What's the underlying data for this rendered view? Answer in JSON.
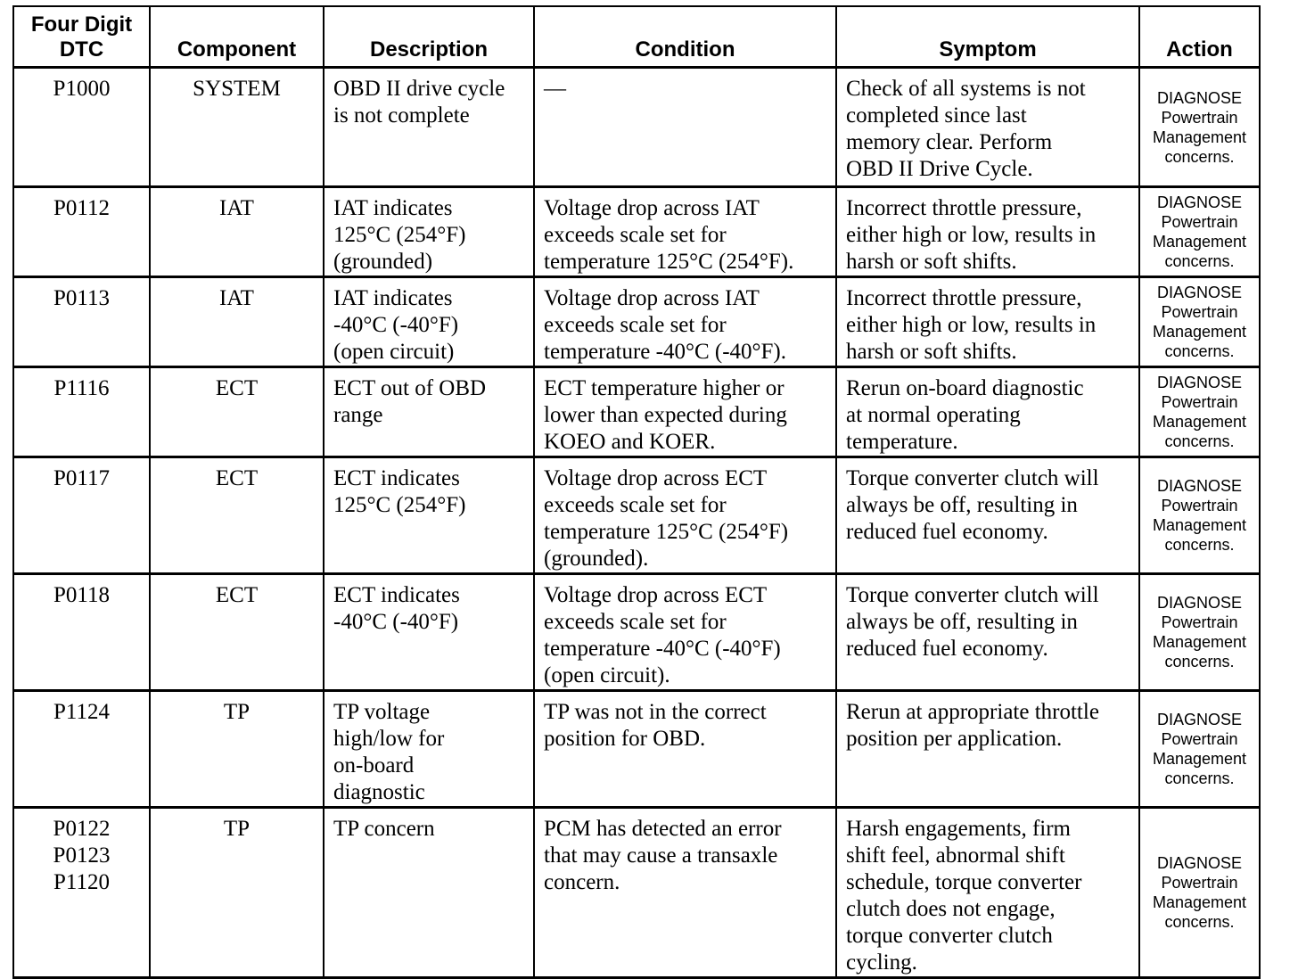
{
  "table": {
    "headers": [
      [
        "Four Digit",
        "DTC"
      ],
      [
        "Component"
      ],
      [
        "Description"
      ],
      [
        "Condition"
      ],
      [
        "Symptom"
      ],
      [
        "Action"
      ]
    ],
    "rows": [
      {
        "dtc": [
          "P1000"
        ],
        "component": [
          "SYSTEM"
        ],
        "description": [
          "OBD II drive cycle",
          "is not complete"
        ],
        "condition": [
          "—"
        ],
        "symptom": [
          "Check of all systems is not",
          "completed since last",
          "memory clear.  Perform",
          "OBD II Drive Cycle."
        ],
        "action": [
          "DIAGNOSE",
          "Powertrain",
          "Management",
          "concerns."
        ]
      },
      {
        "dtc": [
          "P0112"
        ],
        "component": [
          "IAT"
        ],
        "description": [
          "IAT indicates",
          "125°C (254°F)",
          "(grounded)"
        ],
        "condition": [
          "Voltage drop across IAT",
          "exceeds scale set for",
          "temperature 125°C (254°F)."
        ],
        "symptom": [
          "Incorrect throttle pressure,",
          "either high or low, results in",
          "harsh  or soft shifts."
        ],
        "action": [
          "DIAGNOSE",
          "Powertrain",
          "Management",
          "concerns."
        ]
      },
      {
        "dtc": [
          "P0113"
        ],
        "component": [
          "IAT"
        ],
        "description": [
          "IAT indicates",
          "-40°C (-40°F)",
          "(open circuit)"
        ],
        "condition": [
          "Voltage drop across IAT",
          "exceeds scale set for",
          "temperature -40°C (-40°F)."
        ],
        "symptom": [
          "Incorrect throttle pressure,",
          "either high or low, results in",
          "harsh  or soft shifts."
        ],
        "action": [
          "DIAGNOSE",
          "Powertrain",
          "Management",
          "concerns."
        ]
      },
      {
        "dtc": [
          "P1116"
        ],
        "component": [
          "ECT"
        ],
        "description": [
          "ECT out of OBD",
          "range"
        ],
        "condition": [
          "ECT temperature higher or",
          "lower than expected during",
          "KOEO and KOER."
        ],
        "symptom": [
          "Rerun on-board diagnostic",
          "at normal operating",
          "temperature."
        ],
        "action": [
          "DIAGNOSE",
          "Powertrain",
          "Management",
          "concerns."
        ]
      },
      {
        "dtc": [
          "P0117"
        ],
        "component": [
          "ECT"
        ],
        "description": [
          "ECT indicates",
          "125°C (254°F)"
        ],
        "condition": [
          "Voltage drop across ECT",
          "exceeds scale set for",
          "temperature 125°C (254°F)",
          "(grounded)."
        ],
        "symptom": [
          "Torque converter clutch will",
          "always be off, resulting in",
          "reduced  fuel economy."
        ],
        "action": [
          "DIAGNOSE",
          "Powertrain",
          "Management",
          "concerns."
        ]
      },
      {
        "dtc": [
          "P0118"
        ],
        "component": [
          "ECT"
        ],
        "description": [
          "ECT indicates",
          "-40°C (-40°F)"
        ],
        "condition": [
          "Voltage drop across ECT",
          "exceeds scale set for",
          "temperature -40°C (-40°F)",
          "(open circuit)."
        ],
        "symptom": [
          "Torque converter clutch will",
          "always be off, resulting in",
          "reduced  fuel economy."
        ],
        "action": [
          "DIAGNOSE",
          "Powertrain",
          "Management",
          "concerns."
        ]
      },
      {
        "dtc": [
          "P1124"
        ],
        "component": [
          "TP"
        ],
        "description": [
          "TP voltage",
          "high/low for",
          "on-board",
          "diagnostic"
        ],
        "condition": [
          "TP was not in the correct",
          "position for OBD."
        ],
        "symptom": [
          "Rerun at appropriate throttle",
          "position per application."
        ],
        "action": [
          "DIAGNOSE",
          "Powertrain",
          "Management",
          "concerns."
        ]
      },
      {
        "dtc": [
          "P0122",
          "P0123",
          "P1120"
        ],
        "component": [
          "TP"
        ],
        "description": [
          "TP concern"
        ],
        "condition": [
          "PCM has detected an error",
          "that may cause a transaxle",
          "concern."
        ],
        "symptom": [
          "Harsh engagements, firm",
          "shift feel, abnormal shift",
          "schedule, torque converter",
          "clutch does not engage,",
          "torque converter clutch",
          "cycling."
        ],
        "action": [
          "DIAGNOSE",
          "Powertrain",
          "Management",
          "concerns."
        ]
      }
    ]
  }
}
